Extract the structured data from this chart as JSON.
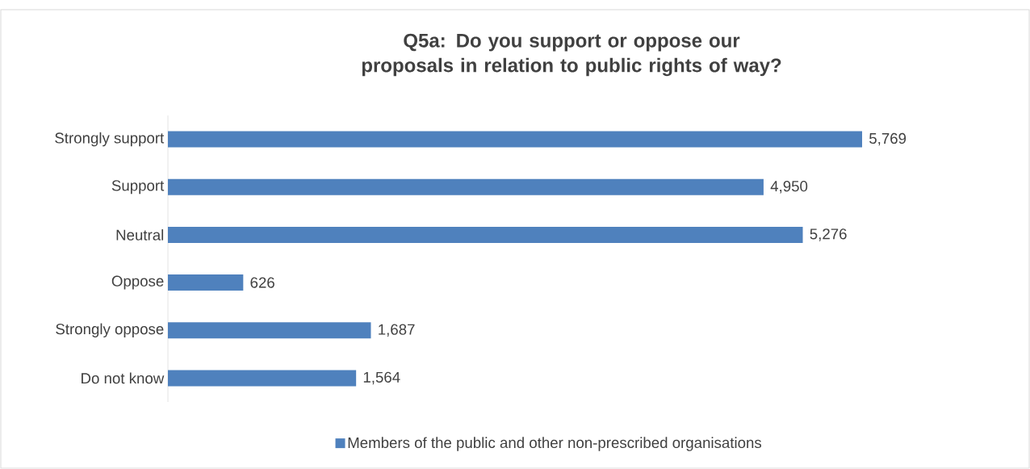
{
  "chart_data": {
    "type": "bar",
    "orientation": "horizontal",
    "title": "Q5a: Do you support or oppose our proposals in relation to public rights of way?",
    "categories": [
      "Strongly support",
      "Support",
      "Neutral",
      "Oppose",
      "Strongly oppose",
      "Do not know"
    ],
    "series": [
      {
        "name": "Members of the public and other non-prescribed organisations",
        "color": "#4f81bd",
        "values": [
          5769,
          4950,
          5276,
          626,
          1687,
          1564
        ],
        "value_labels": [
          "5,769",
          "4,950",
          "5,276",
          "626",
          "1,687",
          "1,564"
        ]
      }
    ],
    "legend": "bottom"
  }
}
